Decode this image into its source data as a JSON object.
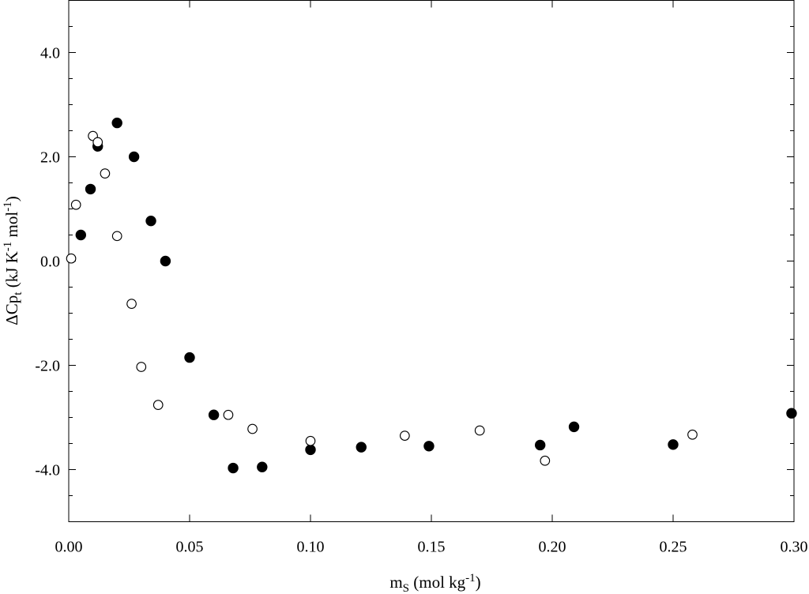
{
  "chart_data": {
    "type": "scatter",
    "xlim": [
      0.0,
      0.3
    ],
    "ylim": [
      -5.0,
      5.0
    ],
    "x_ticks": [
      0.0,
      0.05,
      0.1,
      0.15,
      0.2,
      0.25,
      0.3
    ],
    "x_tick_labels": [
      "0.00",
      "0.05",
      "0.10",
      "0.15",
      "0.20",
      "0.25",
      "0.30"
    ],
    "y_ticks": [
      -4.0,
      -2.0,
      0.0,
      2.0,
      4.0
    ],
    "y_tick_labels": [
      "-4.0",
      "-2.0",
      "0.0",
      "2.0",
      "4.0"
    ],
    "y_minor_step": 0.5,
    "xlabel": {
      "main": "m",
      "sub": "S",
      "rest": " (mol kg",
      "sup": "-1",
      "end": ")"
    },
    "ylabel": {
      "pre": "ΔCp",
      "sub": "t",
      "mid": " (kJ K",
      "sup1": "-1",
      "mid2": " mol",
      "sup2": "-1",
      "end": ")"
    },
    "grid": false,
    "legend": "none",
    "series": [
      {
        "marker": "filled-circle",
        "color": "#000000",
        "points": [
          [
            0.005,
            0.5
          ],
          [
            0.009,
            1.38
          ],
          [
            0.012,
            2.2
          ],
          [
            0.02,
            2.65
          ],
          [
            0.027,
            2.0
          ],
          [
            0.034,
            0.77
          ],
          [
            0.04,
            0.0
          ],
          [
            0.05,
            -1.85
          ],
          [
            0.06,
            -2.95
          ],
          [
            0.068,
            -3.97
          ],
          [
            0.08,
            -3.95
          ],
          [
            0.1,
            -3.62
          ],
          [
            0.121,
            -3.57
          ],
          [
            0.149,
            -3.55
          ],
          [
            0.195,
            -3.53
          ],
          [
            0.209,
            -3.18
          ],
          [
            0.25,
            -3.52
          ],
          [
            0.299,
            -2.92
          ]
        ]
      },
      {
        "marker": "open-circle",
        "color": "#000000",
        "points": [
          [
            0.001,
            0.05
          ],
          [
            0.003,
            1.08
          ],
          [
            0.01,
            2.4
          ],
          [
            0.012,
            2.28
          ],
          [
            0.015,
            1.68
          ],
          [
            0.02,
            0.48
          ],
          [
            0.026,
            -0.82
          ],
          [
            0.03,
            -2.03
          ],
          [
            0.037,
            -2.76
          ],
          [
            0.066,
            -2.95
          ],
          [
            0.076,
            -3.22
          ],
          [
            0.1,
            -3.45
          ],
          [
            0.139,
            -3.35
          ],
          [
            0.17,
            -3.25
          ],
          [
            0.197,
            -3.83
          ],
          [
            0.258,
            -3.33
          ]
        ]
      }
    ]
  }
}
